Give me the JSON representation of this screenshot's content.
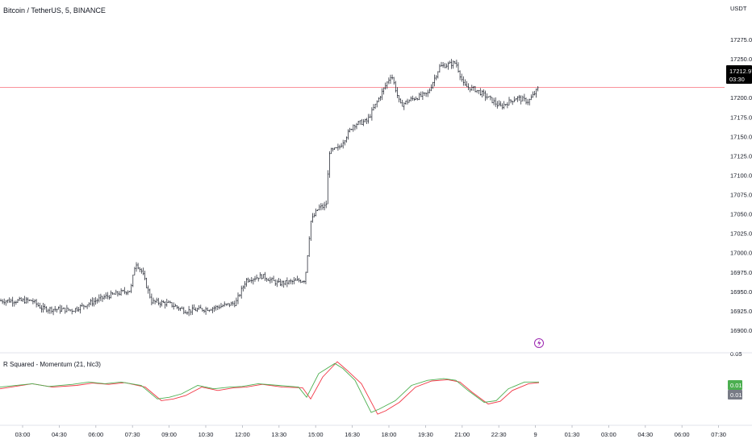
{
  "header": {
    "symbol_title": "Bitcoin / TetherUS, 5, BINANCE"
  },
  "price_axis": {
    "currency": "USDT",
    "ticks": [
      "17275.00",
      "17250.00",
      "17225.00",
      "17200.00",
      "17175.00",
      "17150.00",
      "17125.00",
      "17100.00",
      "17075.00",
      "17050.00",
      "17025.00",
      "17000.00",
      "16975.00",
      "16950.00",
      "16925.00",
      "16900.00"
    ],
    "last_price": "17212.97",
    "countdown": "03:30",
    "lower_edge_label": "0.05"
  },
  "indicator": {
    "title": "R Squared - Momentum (21, hlc3)",
    "badge_green": "0.01",
    "badge_gray": "0.01"
  },
  "time_axis": {
    "labels": [
      "03:00",
      "04:30",
      "06:00",
      "07:30",
      "09:00",
      "10:30",
      "12:00",
      "13:30",
      "15:00",
      "16:30",
      "18:00",
      "19:30",
      "21:00",
      "22:30",
      "9",
      "01:30",
      "03:00",
      "04:30",
      "06:00",
      "07:30"
    ]
  },
  "colors": {
    "bars": "#131722",
    "last_price_line": "#f7525f",
    "indicator_green": "#4caf50",
    "indicator_red": "#f23645",
    "badge_gray": "#787b86",
    "alert_icon": "#9c27b0"
  },
  "icons": {
    "alert": "lightning-alert-icon"
  },
  "chart_data": [
    {
      "type": "ohlc",
      "title": "Bitcoin / TetherUS, 5, BINANCE",
      "ylabel": "USDT",
      "ylim": [
        16885,
        17285
      ],
      "x": [
        "03:00",
        "04:30",
        "06:00",
        "07:30",
        "09:00",
        "10:30",
        "12:00",
        "13:30",
        "15:00",
        "16:30",
        "18:00",
        "19:30",
        "21:00",
        "22:30",
        "9",
        "01:30",
        "03:00",
        "04:30",
        "06:00",
        "07:30"
      ],
      "close_path": [
        [
          0,
          16938
        ],
        [
          40,
          16938
        ],
        [
          52,
          16928
        ],
        [
          90,
          16926
        ],
        [
          130,
          16943
        ],
        [
          162,
          16952
        ],
        [
          168,
          16988
        ],
        [
          176,
          16975
        ],
        [
          188,
          16937
        ],
        [
          210,
          16934
        ],
        [
          230,
          16925
        ],
        [
          260,
          16928
        ],
        [
          292,
          16935
        ],
        [
          305,
          16965
        ],
        [
          325,
          16970
        ],
        [
          345,
          16960
        ],
        [
          378,
          16965
        ],
        [
          385,
          17040
        ],
        [
          395,
          17058
        ],
        [
          404,
          17060
        ],
        [
          408,
          17130
        ],
        [
          420,
          17135
        ],
        [
          438,
          17165
        ],
        [
          455,
          17170
        ],
        [
          470,
          17200
        ],
        [
          485,
          17230
        ],
        [
          496,
          17190
        ],
        [
          510,
          17198
        ],
        [
          530,
          17205
        ],
        [
          545,
          17240
        ],
        [
          565,
          17245
        ],
        [
          575,
          17215
        ],
        [
          590,
          17210
        ],
        [
          605,
          17200
        ],
        [
          620,
          17188
        ],
        [
          640,
          17200
        ],
        [
          655,
          17195
        ],
        [
          668,
          17212.97
        ]
      ],
      "last_price": 17212.97
    },
    {
      "type": "line",
      "title": "R Squared - Momentum (21, hlc3)",
      "series": [
        {
          "color": "green",
          "points": [
            [
              0,
              0.2
            ],
            [
              40,
              0.3
            ],
            [
              60,
              0.22
            ],
            [
              90,
              0.28
            ],
            [
              110,
              0.35
            ],
            [
              130,
              0.3
            ],
            [
              150,
              0.35
            ],
            [
              175,
              0.25
            ],
            [
              195,
              -0.15
            ],
            [
              210,
              -0.1
            ],
            [
              225,
              0.0
            ],
            [
              245,
              0.25
            ],
            [
              265,
              0.15
            ],
            [
              285,
              0.2
            ],
            [
              300,
              0.22
            ],
            [
              320,
              0.3
            ],
            [
              345,
              0.25
            ],
            [
              370,
              0.2
            ],
            [
              380,
              -0.1
            ],
            [
              395,
              0.6
            ],
            [
              415,
              0.9
            ],
            [
              425,
              0.75
            ],
            [
              440,
              0.4
            ],
            [
              460,
              -0.55
            ],
            [
              470,
              -0.45
            ],
            [
              490,
              -0.2
            ],
            [
              510,
              0.25
            ],
            [
              530,
              0.4
            ],
            [
              550,
              0.45
            ],
            [
              565,
              0.4
            ],
            [
              580,
              0.1
            ],
            [
              600,
              -0.25
            ],
            [
              615,
              -0.2
            ],
            [
              630,
              0.15
            ],
            [
              650,
              0.35
            ],
            [
              668,
              0.35
            ]
          ]
        },
        {
          "color": "red",
          "points": [
            [
              0,
              0.15
            ],
            [
              40,
              0.3
            ],
            [
              65,
              0.2
            ],
            [
              95,
              0.25
            ],
            [
              115,
              0.32
            ],
            [
              135,
              0.28
            ],
            [
              155,
              0.33
            ],
            [
              180,
              0.2
            ],
            [
              200,
              -0.2
            ],
            [
              215,
              -0.15
            ],
            [
              230,
              -0.05
            ],
            [
              250,
              0.2
            ],
            [
              270,
              0.1
            ],
            [
              290,
              0.18
            ],
            [
              305,
              0.2
            ],
            [
              325,
              0.28
            ],
            [
              350,
              0.2
            ],
            [
              375,
              0.18
            ],
            [
              385,
              -0.15
            ],
            [
              400,
              0.5
            ],
            [
              418,
              0.95
            ],
            [
              430,
              0.7
            ],
            [
              448,
              0.3
            ],
            [
              468,
              -0.6
            ],
            [
              478,
              -0.5
            ],
            [
              495,
              -0.25
            ],
            [
              515,
              0.2
            ],
            [
              535,
              0.38
            ],
            [
              555,
              0.42
            ],
            [
              570,
              0.35
            ],
            [
              585,
              0.05
            ],
            [
              605,
              -0.3
            ],
            [
              620,
              -0.22
            ],
            [
              635,
              0.1
            ],
            [
              655,
              0.3
            ],
            [
              668,
              0.33
            ]
          ]
        }
      ],
      "last_values": [
        0.01,
        0.01
      ]
    }
  ]
}
